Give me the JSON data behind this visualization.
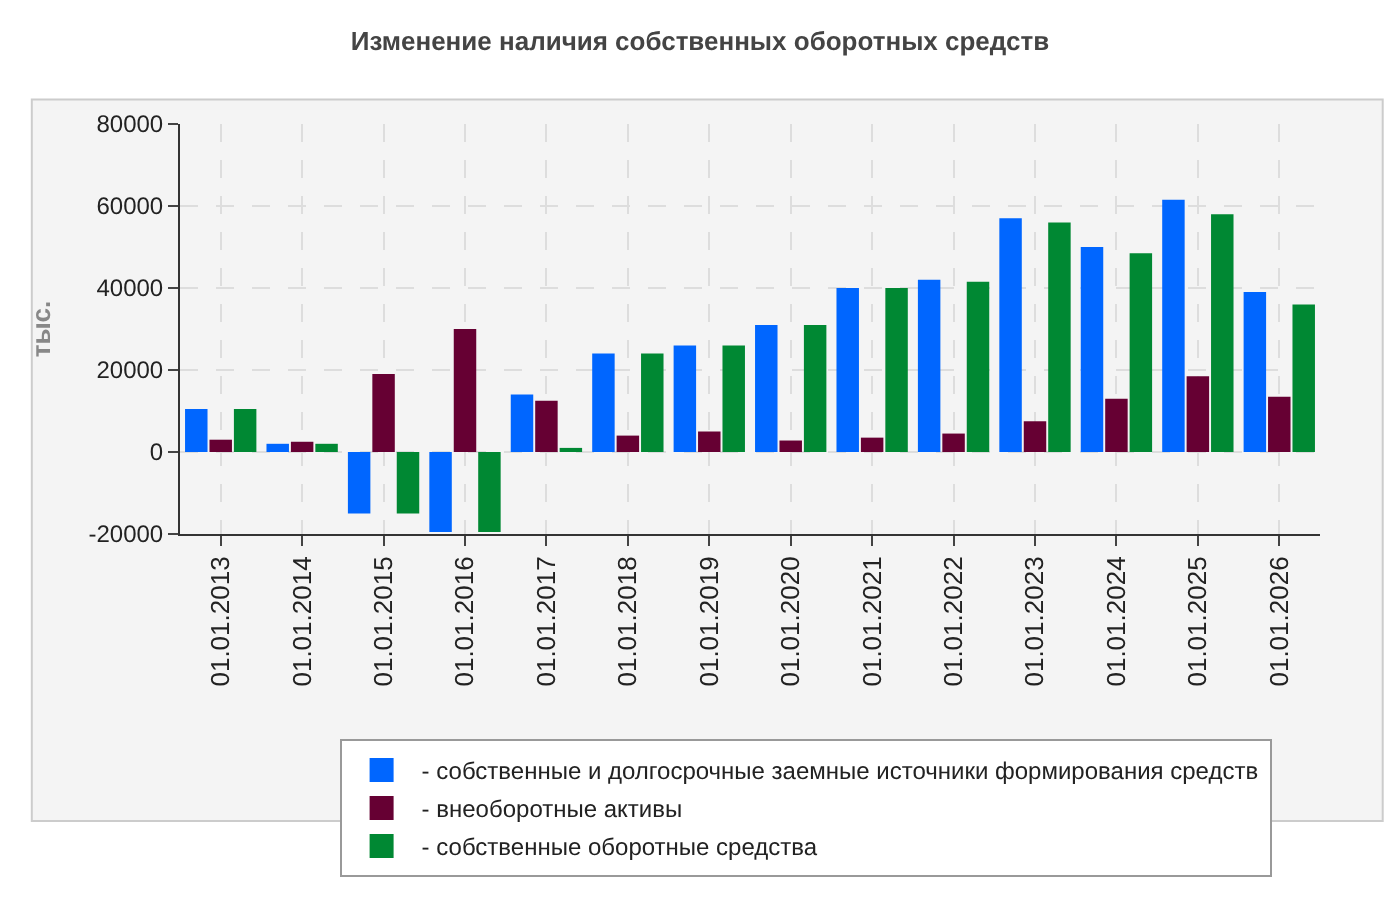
{
  "chart_data": {
    "type": "bar",
    "title": "Изменение наличия собственных оборотных средств",
    "ylabel": "тыс.",
    "categories": [
      "01.01.2013",
      "01.01.2014",
      "01.01.2015",
      "01.01.2016",
      "01.01.2017",
      "01.01.2018",
      "01.01.2019",
      "01.01.2020",
      "01.01.2021",
      "01.01.2022",
      "01.01.2023",
      "01.01.2024",
      "01.01.2025",
      "01.01.2026"
    ],
    "series": [
      {
        "name": "- собственные и долгосрочные заемные источники формирования средств",
        "color": "#0066ff",
        "values": [
          10500,
          2000,
          -15000,
          -19500,
          14000,
          24000,
          26000,
          31000,
          40000,
          42000,
          57000,
          50000,
          61500,
          39000
        ]
      },
      {
        "name": "- внеоборотные активы",
        "color": "#660033",
        "values": [
          3000,
          2500,
          19000,
          30000,
          12500,
          4000,
          5000,
          2800,
          3500,
          4500,
          7500,
          13000,
          18500,
          13500
        ]
      },
      {
        "name": "- собственные оборотные средства",
        "color": "#008833",
        "values": [
          10500,
          2000,
          -15000,
          -19500,
          1000,
          24000,
          26000,
          31000,
          40000,
          41500,
          56000,
          48500,
          58000,
          36000
        ]
      }
    ],
    "ylim": [
      -20000,
      80000
    ],
    "yticks": [
      -20000,
      0,
      20000,
      40000,
      60000,
      80000
    ],
    "grid": true,
    "legend": "bottom"
  }
}
